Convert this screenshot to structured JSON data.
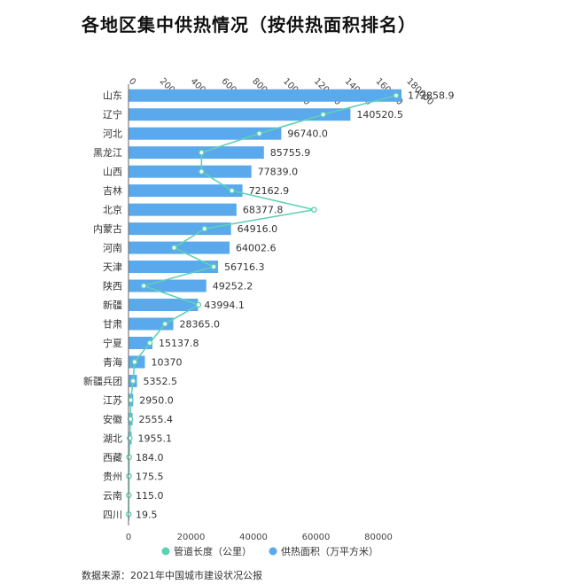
{
  "title": "各地区集中供热情况（按供热面积排名）",
  "source": "数据来源：2021年中国城市建设状况公报",
  "colors": {
    "bar": "#5aa9ec",
    "line": "#5ed1b4"
  },
  "chart_data": {
    "type": "bar",
    "orientation": "horizontal",
    "categories": [
      "山东",
      "辽宁",
      "河北",
      "黑龙江",
      "山西",
      "吉林",
      "北京",
      "内蒙古",
      "河南",
      "天津",
      "陕西",
      "新疆",
      "甘肃",
      "宁夏",
      "青海",
      "新疆兵团",
      "江苏",
      "安徽",
      "湖北",
      "西藏",
      "贵州",
      "云南",
      "四川"
    ],
    "series": [
      {
        "name": "供热面积（万平方米）",
        "type": "bar",
        "axis": "bottom",
        "values": [
          172858.9,
          140520.5,
          96740.0,
          85755.9,
          77839.0,
          72162.9,
          68377.8,
          64916.0,
          64002.6,
          56716.3,
          49252.2,
          43994.1,
          28365.0,
          15137.8,
          10370,
          5352.5,
          2950.0,
          2555.4,
          1955.1,
          184.0,
          175.5,
          115.0,
          19.5
        ],
        "labels": [
          "172858.9",
          "140520.5",
          "96740.0",
          "85755.9",
          "77839.0",
          "72162.9",
          "68377.8",
          "64916.0",
          "64002.6",
          "56716.3",
          "49252.2",
          "43994.1",
          "28365.0",
          "15137.8",
          "10370",
          "5352.5",
          "2950.0",
          "2555.4",
          "1955.1",
          "184.0",
          "175.5",
          "115.0",
          "19.5"
        ]
      },
      {
        "name": "管道长度（公里）",
        "type": "line",
        "axis": "top",
        "values": [
          88000,
          64000,
          43000,
          24000,
          24000,
          34000,
          61000,
          25000,
          15000,
          28000,
          5000,
          23000,
          12000,
          7000,
          2000,
          1500,
          700,
          600,
          400,
          200,
          150,
          100,
          50
        ]
      }
    ],
    "bottom_axis": {
      "ticks": [
        "0",
        "20000",
        "40000",
        "60000",
        "80000"
      ],
      "min": 0,
      "max": 88000
    },
    "top_axis": {
      "ticks": [
        "0",
        "20000",
        "40000",
        "60000",
        "80000",
        "100000",
        "120000",
        "140000",
        "160000",
        "180000"
      ],
      "min": 0,
      "max": 180000
    },
    "legend_position": "bottom"
  }
}
